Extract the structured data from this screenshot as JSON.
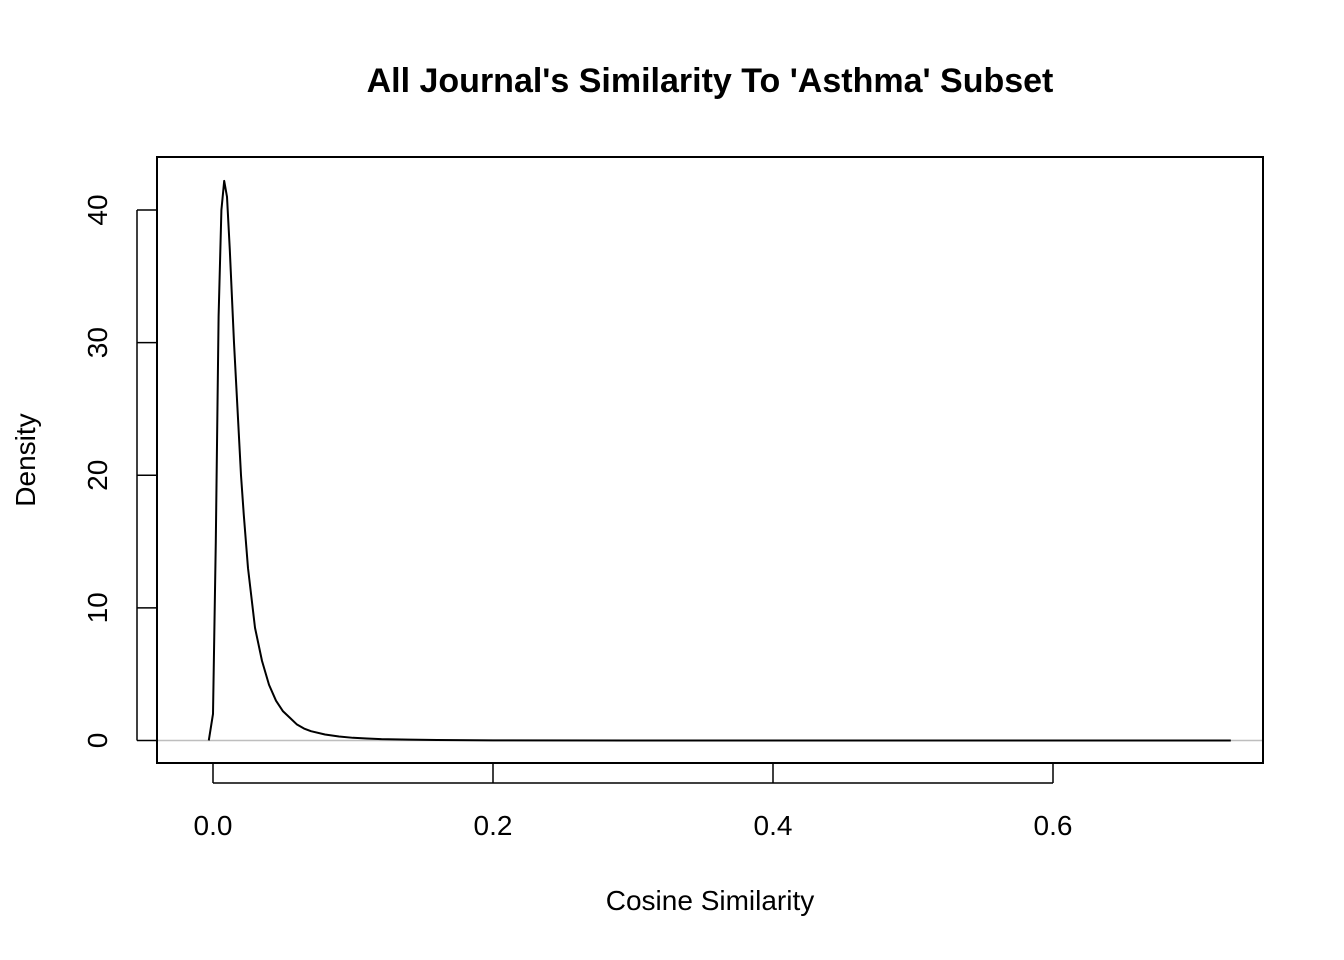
{
  "chart_data": {
    "type": "line",
    "title": "All Journal's Similarity To 'Asthma' Subset",
    "xlabel": "Cosine Similarity",
    "ylabel": "Density",
    "xlim": [
      -0.04,
      0.75
    ],
    "ylim": [
      -1.7,
      44
    ],
    "x_ticks": [
      0.0,
      0.2,
      0.4,
      0.6
    ],
    "x_tick_labels": [
      "0.0",
      "0.2",
      "0.4",
      "0.6"
    ],
    "y_ticks": [
      0,
      10,
      20,
      30,
      40
    ],
    "y_tick_labels": [
      "0",
      "10",
      "20",
      "30",
      "40"
    ],
    "grid": false,
    "zero_line": true,
    "series": [
      {
        "x": [
          -0.003,
          0.0,
          0.002,
          0.004,
          0.006,
          0.008,
          0.01,
          0.012,
          0.015,
          0.018,
          0.02,
          0.022,
          0.025,
          0.03,
          0.035,
          0.04,
          0.045,
          0.05,
          0.055,
          0.06,
          0.065,
          0.07,
          0.08,
          0.09,
          0.1,
          0.11,
          0.12,
          0.14,
          0.16,
          0.2,
          0.3,
          0.4,
          0.5,
          0.6,
          0.7,
          0.727
        ],
        "values": [
          0.0,
          2.0,
          15.0,
          32.0,
          40.0,
          42.2,
          41.0,
          37.0,
          30.0,
          24.0,
          20.0,
          17.0,
          13.0,
          8.5,
          6.0,
          4.2,
          3.0,
          2.2,
          1.7,
          1.2,
          0.9,
          0.7,
          0.45,
          0.3,
          0.2,
          0.15,
          0.1,
          0.06,
          0.03,
          0.01,
          0.0,
          0.0,
          0.0,
          0.0,
          0.0,
          0.0
        ]
      }
    ]
  }
}
